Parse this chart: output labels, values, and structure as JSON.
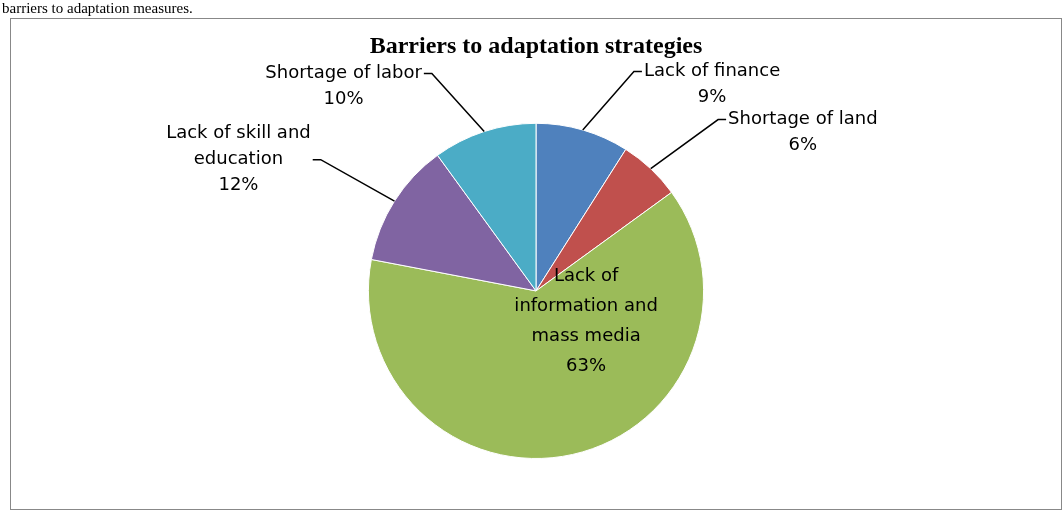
{
  "chart_data": {
    "type": "pie",
    "title": "Barriers to adaptation strategies",
    "annotations": [
      "barriers to adaptation measures."
    ],
    "categories": [
      "Lack of finance",
      "Shortage of land",
      "Lack of information and mass media",
      "Lack of skill and education",
      "Shortage of labor"
    ],
    "values": [
      9,
      6,
      63,
      12,
      10
    ],
    "value_labels": [
      "9%",
      "6%",
      "63%",
      "12%",
      "10%"
    ],
    "colors": [
      "#4f81bd",
      "#c0504d",
      "#9bbb59",
      "#8064a2",
      "#4bacc6"
    ],
    "legend": false
  }
}
